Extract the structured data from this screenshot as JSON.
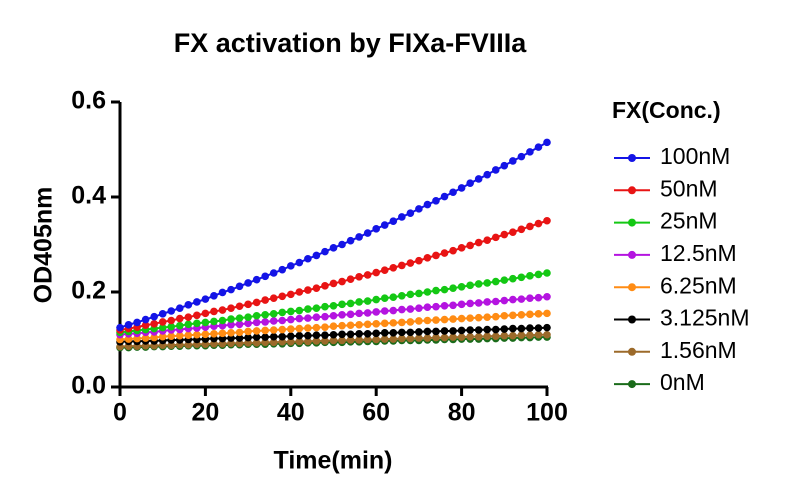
{
  "chart_data": {
    "type": "line",
    "title": "FX activation by FIXa-FVIIIa",
    "x_label": "Time(min)",
    "y_label": "OD405nm",
    "legend_title": "FX(Conc.)",
    "x": [
      0,
      2,
      4,
      6,
      8,
      10,
      12,
      14,
      16,
      18,
      20,
      22,
      24,
      26,
      28,
      30,
      32,
      34,
      36,
      38,
      40,
      42,
      44,
      46,
      48,
      50,
      52,
      54,
      56,
      58,
      60,
      62,
      64,
      66,
      68,
      70,
      72,
      74,
      76,
      78,
      80,
      82,
      84,
      86,
      88,
      90,
      92,
      94,
      96,
      98,
      100
    ],
    "xlim": [
      0,
      100
    ],
    "xticks": [
      0,
      20,
      40,
      60,
      80,
      100
    ],
    "ylim": [
      0,
      0.6
    ],
    "yticks": [
      {
        "value": 0,
        "label": "0.0"
      },
      0.2,
      0.4,
      0.6
    ],
    "series": [
      {
        "name": "100nM",
        "color": "#1414e6",
        "values": [
          0.125,
          0.131,
          0.136,
          0.142,
          0.148,
          0.154,
          0.16,
          0.166,
          0.173,
          0.179,
          0.185,
          0.192,
          0.199,
          0.205,
          0.212,
          0.219,
          0.226,
          0.233,
          0.24,
          0.247,
          0.255,
          0.262,
          0.27,
          0.277,
          0.285,
          0.293,
          0.3,
          0.308,
          0.316,
          0.324,
          0.333,
          0.341,
          0.349,
          0.358,
          0.366,
          0.375,
          0.384,
          0.392,
          0.401,
          0.41,
          0.419,
          0.429,
          0.438,
          0.447,
          0.457,
          0.466,
          0.476,
          0.485,
          0.495,
          0.505,
          0.515
        ]
      },
      {
        "name": "50nM",
        "color": "#e81414",
        "values": [
          0.12,
          0.123,
          0.126,
          0.13,
          0.133,
          0.137,
          0.14,
          0.144,
          0.147,
          0.151,
          0.155,
          0.159,
          0.162,
          0.166,
          0.17,
          0.174,
          0.178,
          0.183,
          0.187,
          0.191,
          0.195,
          0.2,
          0.204,
          0.208,
          0.213,
          0.218,
          0.222,
          0.227,
          0.232,
          0.236,
          0.241,
          0.246,
          0.251,
          0.256,
          0.261,
          0.266,
          0.272,
          0.277,
          0.282,
          0.287,
          0.293,
          0.298,
          0.304,
          0.309,
          0.315,
          0.321,
          0.326,
          0.332,
          0.338,
          0.344,
          0.35
        ]
      },
      {
        "name": "25nM",
        "color": "#14c814",
        "values": [
          0.115,
          0.117,
          0.119,
          0.121,
          0.123,
          0.125,
          0.127,
          0.129,
          0.132,
          0.134,
          0.136,
          0.138,
          0.14,
          0.143,
          0.145,
          0.147,
          0.15,
          0.152,
          0.154,
          0.157,
          0.159,
          0.161,
          0.164,
          0.166,
          0.169,
          0.171,
          0.174,
          0.176,
          0.179,
          0.181,
          0.184,
          0.187,
          0.189,
          0.192,
          0.195,
          0.197,
          0.2,
          0.203,
          0.205,
          0.208,
          0.211,
          0.214,
          0.217,
          0.219,
          0.222,
          0.225,
          0.228,
          0.231,
          0.234,
          0.237,
          0.24
        ]
      },
      {
        "name": "12.5nM",
        "color": "#b414e0",
        "values": [
          0.11,
          0.112,
          0.113,
          0.115,
          0.116,
          0.118,
          0.12,
          0.121,
          0.123,
          0.124,
          0.126,
          0.128,
          0.129,
          0.131,
          0.132,
          0.134,
          0.136,
          0.137,
          0.139,
          0.14,
          0.142,
          0.144,
          0.145,
          0.147,
          0.148,
          0.15,
          0.152,
          0.153,
          0.155,
          0.156,
          0.158,
          0.16,
          0.161,
          0.163,
          0.164,
          0.166,
          0.168,
          0.169,
          0.171,
          0.172,
          0.174,
          0.176,
          0.177,
          0.179,
          0.18,
          0.182,
          0.184,
          0.185,
          0.187,
          0.188,
          0.19
        ]
      },
      {
        "name": "6.25nM",
        "color": "#ff8c14",
        "values": [
          0.1,
          0.101,
          0.102,
          0.103,
          0.104,
          0.106,
          0.107,
          0.108,
          0.109,
          0.11,
          0.111,
          0.112,
          0.113,
          0.114,
          0.115,
          0.117,
          0.118,
          0.119,
          0.12,
          0.121,
          0.122,
          0.123,
          0.124,
          0.125,
          0.126,
          0.128,
          0.129,
          0.13,
          0.131,
          0.132,
          0.133,
          0.134,
          0.135,
          0.136,
          0.137,
          0.139,
          0.14,
          0.141,
          0.142,
          0.143,
          0.144,
          0.145,
          0.146,
          0.147,
          0.148,
          0.15,
          0.151,
          0.152,
          0.153,
          0.154,
          0.155
        ]
      },
      {
        "name": "3.125nM",
        "color": "#000000",
        "values": [
          0.095,
          0.096,
          0.096,
          0.097,
          0.097,
          0.098,
          0.099,
          0.099,
          0.1,
          0.1,
          0.101,
          0.102,
          0.102,
          0.103,
          0.103,
          0.104,
          0.105,
          0.105,
          0.106,
          0.106,
          0.107,
          0.108,
          0.108,
          0.109,
          0.109,
          0.11,
          0.111,
          0.111,
          0.112,
          0.112,
          0.113,
          0.114,
          0.114,
          0.115,
          0.115,
          0.116,
          0.117,
          0.117,
          0.118,
          0.118,
          0.119,
          0.12,
          0.12,
          0.121,
          0.121,
          0.122,
          0.123,
          0.123,
          0.124,
          0.124,
          0.125
        ]
      },
      {
        "name": "1.56nM",
        "color": "#9c6a2a",
        "values": [
          0.085,
          0.086,
          0.086,
          0.087,
          0.087,
          0.088,
          0.088,
          0.089,
          0.089,
          0.09,
          0.09,
          0.091,
          0.091,
          0.092,
          0.092,
          0.093,
          0.093,
          0.094,
          0.094,
          0.095,
          0.095,
          0.096,
          0.096,
          0.097,
          0.097,
          0.098,
          0.098,
          0.099,
          0.099,
          0.1,
          0.1,
          0.101,
          0.101,
          0.102,
          0.102,
          0.103,
          0.103,
          0.104,
          0.104,
          0.105,
          0.105,
          0.106,
          0.106,
          0.107,
          0.107,
          0.108,
          0.108,
          0.109,
          0.109,
          0.11,
          0.11
        ]
      },
      {
        "name": "0nM",
        "color": "#1a6b1a",
        "values": [
          0.083,
          0.083,
          0.084,
          0.084,
          0.085,
          0.085,
          0.086,
          0.086,
          0.087,
          0.087,
          0.087,
          0.088,
          0.088,
          0.089,
          0.089,
          0.09,
          0.09,
          0.09,
          0.091,
          0.091,
          0.092,
          0.092,
          0.093,
          0.093,
          0.094,
          0.094,
          0.094,
          0.095,
          0.095,
          0.096,
          0.096,
          0.097,
          0.097,
          0.098,
          0.098,
          0.098,
          0.099,
          0.099,
          0.1,
          0.1,
          0.101,
          0.101,
          0.101,
          0.102,
          0.102,
          0.103,
          0.103,
          0.104,
          0.104,
          0.105,
          0.105
        ]
      }
    ]
  }
}
